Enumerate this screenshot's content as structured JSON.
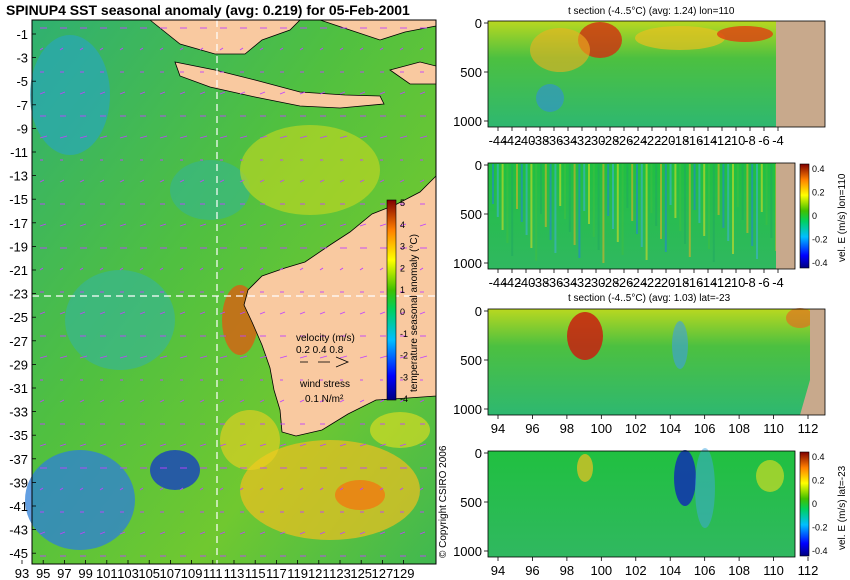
{
  "main_title": "SPINUP4 SST seasonal anomaly (avg: 0.219) for 05-Feb-2001",
  "copyright": "© Copyright CSIRO 2006",
  "colors": {
    "land": "#f9c9a0",
    "section_land": "#c8a98c",
    "guide": "#ffffff"
  },
  "map": {
    "y_ticks": [
      "-1",
      "-3",
      "-5",
      "-7",
      "-9",
      "-11",
      "-13",
      "-15",
      "-17",
      "-19",
      "-21",
      "-23",
      "-25",
      "-27",
      "-29",
      "-31",
      "-33",
      "-35",
      "-37",
      "-39",
      "-41",
      "-43",
      "-45"
    ],
    "x_ticks": [
      "93",
      "95",
      "97",
      "99",
      "101",
      "103",
      "105",
      "107",
      "109",
      "111",
      "113",
      "115",
      "117",
      "119",
      "121",
      "123",
      "125",
      "127",
      "129"
    ],
    "colorbar_label": "temperature seasonal anomaly (°C)",
    "colorbar_ticks": [
      "5",
      "4",
      "3",
      "2",
      "1",
      "0",
      "-1",
      "-2",
      "-3",
      "-4"
    ],
    "velocity_legend": {
      "title": "velocity (m/s)",
      "values": "0.2 0.4 0.8"
    },
    "wind_legend": {
      "title": "wind stress",
      "value": "0.1 N/m²"
    },
    "guide_lon": "111",
    "guide_lat": "-23"
  },
  "panels": {
    "t_lon": {
      "title": "t section (-4..5°C) (avg: 1.24) lon=110",
      "y_ticks": [
        "0",
        "500",
        "1000"
      ],
      "x_ticks": [
        "-44",
        "-42",
        "-40",
        "-38",
        "-36",
        "-34",
        "-32",
        "-30",
        "-28",
        "-26",
        "-24",
        "-22",
        "-20",
        "-18",
        "-16",
        "-14",
        "-12",
        "-10",
        "-8",
        "-6",
        "-4"
      ]
    },
    "u_lon": {
      "y_ticks": [
        "0",
        "500",
        "1000"
      ],
      "x_ticks": [
        "-44",
        "-42",
        "-40",
        "-38",
        "-36",
        "-34",
        "-32",
        "-30",
        "-28",
        "-26",
        "-24",
        "-22",
        "-20",
        "-18",
        "-16",
        "-14",
        "-12",
        "-10",
        "-8",
        "-6",
        "-4"
      ],
      "colorbar_label": "vel. E (m/s) lon=110",
      "colorbar_ticks": [
        "0.4",
        "0.2",
        "0",
        "-0.2",
        "-0.4"
      ]
    },
    "t_lat": {
      "title": "t section (-4..5°C) (avg: 1.03) lat=-23",
      "y_ticks": [
        "0",
        "500",
        "1000"
      ],
      "x_ticks": [
        "94",
        "96",
        "98",
        "100",
        "102",
        "104",
        "106",
        "108",
        "110",
        "112"
      ]
    },
    "u_lat": {
      "y_ticks": [
        "0",
        "500",
        "1000"
      ],
      "x_ticks": [
        "94",
        "96",
        "98",
        "100",
        "102",
        "104",
        "106",
        "108",
        "110",
        "112"
      ],
      "colorbar_label": "vel. E (m/s) lat=-23",
      "colorbar_ticks": [
        "0.4",
        "0.2",
        "0",
        "-0.2",
        "-0.4"
      ]
    }
  },
  "chart_data": [
    {
      "type": "heatmap",
      "title": "SPINUP4 SST seasonal anomaly (avg: 0.219) for 05-Feb-2001",
      "xlabel": "",
      "ylabel": "",
      "xlim": [
        93,
        130
      ],
      "ylim": [
        -45,
        0
      ],
      "colorbar": {
        "label": "temperature seasonal anomaly (°C)",
        "range": [
          -4,
          5
        ]
      }
    },
    {
      "type": "heatmap",
      "title": "t section (-4..5°C) (avg: 1.24) lon=110",
      "xlim": [
        -45,
        -3
      ],
      "ylim": [
        1000,
        0
      ],
      "colorbar": {
        "range": [
          -4,
          5
        ]
      }
    },
    {
      "type": "heatmap",
      "title": "",
      "xlim": [
        -45,
        -3
      ],
      "ylim": [
        1000,
        0
      ],
      "colorbar": {
        "label": "vel. E (m/s) lon=110",
        "range": [
          -0.4,
          0.4
        ]
      }
    },
    {
      "type": "heatmap",
      "title": "t section (-4..5°C) (avg: 1.03) lat=-23",
      "xlim": [
        93,
        114
      ],
      "ylim": [
        1000,
        0
      ],
      "colorbar": {
        "range": [
          -4,
          5
        ]
      }
    },
    {
      "type": "heatmap",
      "title": "",
      "xlim": [
        93,
        114
      ],
      "ylim": [
        1000,
        0
      ],
      "colorbar": {
        "label": "vel. E (m/s) lat=-23",
        "range": [
          -0.4,
          0.4
        ]
      }
    }
  ]
}
